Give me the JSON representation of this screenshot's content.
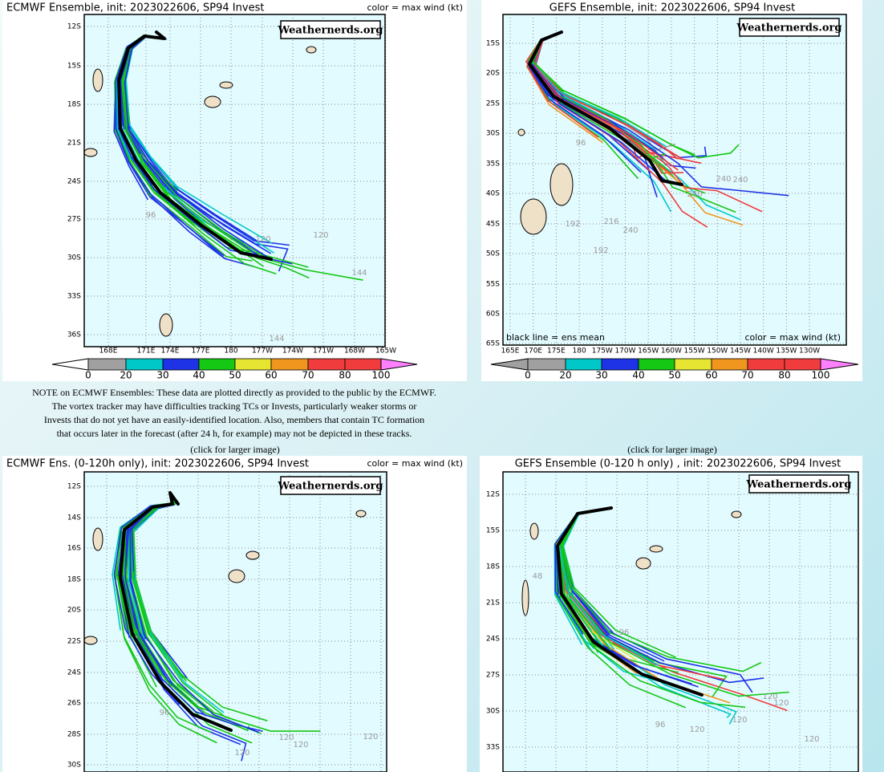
{
  "panels": [
    {
      "title": "ECMWF Ensemble, init: 2023022606, SP94 Invest",
      "legend_note": "color = max wind (kt)",
      "watermark": "Weathernerds.org",
      "lat_labels": [
        "12S",
        "15S",
        "18S",
        "21S",
        "24S",
        "27S",
        "30S",
        "33S",
        "36S"
      ],
      "lon_labels": [
        "168E",
        "171E",
        "174E",
        "177E",
        "180",
        "177W",
        "174W",
        "171W",
        "168W",
        "165W"
      ],
      "colorbar_labels": [
        "0",
        "20",
        "30",
        "40",
        "50",
        "60",
        "70",
        "80",
        "100"
      ],
      "hour_labels": [
        "96",
        "120",
        "120",
        "144",
        "144"
      ]
    },
    {
      "title": "GEFS Ensemble, init: 2023022606, SP94 Invest",
      "legend_note": "color = max wind (kt)",
      "watermark": "Weathernerds.org",
      "mean_note": "black line = ens mean",
      "lat_labels": [
        "15S",
        "20S",
        "25S",
        "30S",
        "35S",
        "40S",
        "45S",
        "50S",
        "55S",
        "60S",
        "65S"
      ],
      "lon_labels": [
        "165E",
        "170E",
        "175E",
        "180",
        "175W",
        "170W",
        "165W",
        "160W",
        "155W",
        "150W",
        "145W",
        "140W",
        "135W",
        "130W"
      ],
      "colorbar_labels": [
        "0",
        "20",
        "30",
        "40",
        "50",
        "60",
        "70",
        "80",
        "100"
      ],
      "hour_labels": [
        "96",
        "192",
        "192",
        "216",
        "240",
        "240",
        "240",
        "240"
      ]
    },
    {
      "title": "ECMWF Ens. (0-120h only), init: 2023022606, SP94 Invest",
      "legend_note": "color = max wind (kt)",
      "watermark": "Weathernerds.org",
      "lat_labels": [
        "12S",
        "14S",
        "16S",
        "18S",
        "20S",
        "22S",
        "24S",
        "26S",
        "28S",
        "30S"
      ],
      "hour_labels": [
        "96",
        "120",
        "120",
        "120",
        "120"
      ]
    },
    {
      "title": "GEFS Ensemble (0-120 h only) , init: 2023022606, SP94 Invest",
      "watermark": "Weathernerds.org",
      "lat_labels": [
        "12S",
        "15S",
        "18S",
        "21S",
        "24S",
        "27S",
        "30S",
        "33S"
      ],
      "hour_labels": [
        "48",
        "96",
        "96",
        "120",
        "120",
        "120",
        "120",
        "120"
      ]
    }
  ],
  "note": [
    "NOTE on ECMWF Ensembles: These data are plotted directly as provided to the public by the ECMWF.",
    "The vortex tracker may have difficulties tracking TCs or Invests, particularly weaker storms or",
    "Invests that do not yet have an easily-identified location. Also, members that contain TC formation",
    "that occurs later in the forecast (after 24 h, for example) may not be depicted in these tracks."
  ],
  "click_labels": [
    "(click for larger image)",
    "(click for larger image)"
  ]
}
